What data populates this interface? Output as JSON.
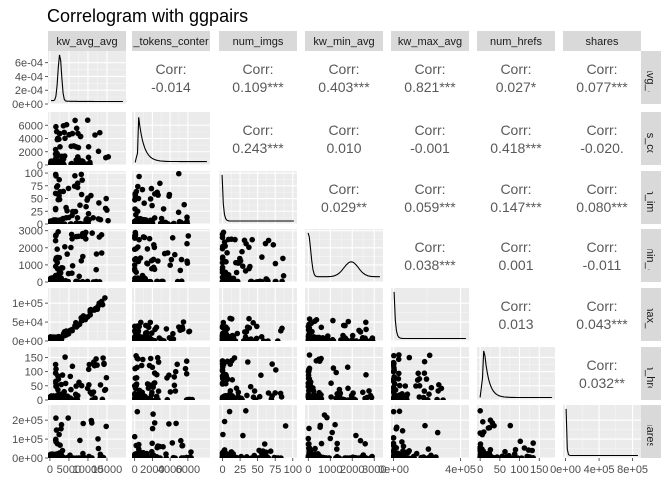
{
  "title": "Correlogram with ggpairs",
  "variables": [
    "kw_avg_avg",
    "n_tokens_content",
    "num_imgs",
    "kw_min_avg",
    "kw_max_avg",
    "num_hrefs",
    "shares"
  ],
  "strip_labels_top": [
    "kw_avg_avg",
    "_tokens_conter",
    "num_imgs",
    "kw_min_avg",
    "kw_max_avg",
    "num_hrefs",
    "shares"
  ],
  "strip_labels_right": [
    "w_avg_av",
    "kens_con",
    "num_img:",
    "w_min_av",
    "w_max_av",
    "num_href:",
    "shares"
  ],
  "corr_label": "Corr:",
  "chart_data": {
    "type": "scatter",
    "subtype": "pairs-matrix",
    "title": "Correlogram with ggpairs",
    "upper_correlations": [
      {
        "row": "kw_avg_avg",
        "col": "n_tokens_content",
        "value": "-0.014"
      },
      {
        "row": "kw_avg_avg",
        "col": "num_imgs",
        "value": "0.109***"
      },
      {
        "row": "kw_avg_avg",
        "col": "kw_min_avg",
        "value": "0.403***"
      },
      {
        "row": "kw_avg_avg",
        "col": "kw_max_avg",
        "value": "0.821***"
      },
      {
        "row": "kw_avg_avg",
        "col": "num_hrefs",
        "value": "0.027*"
      },
      {
        "row": "kw_avg_avg",
        "col": "shares",
        "value": "0.077***"
      },
      {
        "row": "n_tokens_content",
        "col": "num_imgs",
        "value": "0.243***"
      },
      {
        "row": "n_tokens_content",
        "col": "kw_min_avg",
        "value": "0.010"
      },
      {
        "row": "n_tokens_content",
        "col": "kw_max_avg",
        "value": "-0.001"
      },
      {
        "row": "n_tokens_content",
        "col": "num_hrefs",
        "value": "0.418***"
      },
      {
        "row": "n_tokens_content",
        "col": "shares",
        "value": "-0.020."
      },
      {
        "row": "num_imgs",
        "col": "kw_min_avg",
        "value": "0.029**"
      },
      {
        "row": "num_imgs",
        "col": "kw_max_avg",
        "value": "0.059***"
      },
      {
        "row": "num_imgs",
        "col": "num_hrefs",
        "value": "0.147***"
      },
      {
        "row": "num_imgs",
        "col": "shares",
        "value": "0.080***"
      },
      {
        "row": "kw_min_avg",
        "col": "kw_max_avg",
        "value": "0.038***"
      },
      {
        "row": "kw_min_avg",
        "col": "num_hrefs",
        "value": "0.001"
      },
      {
        "row": "kw_min_avg",
        "col": "shares",
        "value": "-0.011"
      },
      {
        "row": "kw_max_avg",
        "col": "num_hrefs",
        "value": "0.013"
      },
      {
        "row": "kw_max_avg",
        "col": "shares",
        "value": "0.043***"
      },
      {
        "row": "num_hrefs",
        "col": "shares",
        "value": "0.032**"
      }
    ],
    "y_axis_ticks": [
      {
        "labels": [
          "0e+00",
          "2e-04",
          "4e-04",
          "6e-04"
        ],
        "values": [
          0,
          0.0002,
          0.0004,
          0.0006
        ],
        "range": [
          0,
          0.00077
        ]
      },
      {
        "labels": [
          "0",
          "2000",
          "4000",
          "6000"
        ],
        "values": [
          0,
          2000,
          4000,
          6000
        ],
        "range": [
          0,
          8000
        ]
      },
      {
        "labels": [
          "0",
          "25",
          "50",
          "75",
          "100"
        ],
        "values": [
          0,
          25,
          50,
          75,
          100
        ],
        "range": [
          0,
          104
        ]
      },
      {
        "labels": [
          "0",
          "1000",
          "2000",
          "3000"
        ],
        "values": [
          0,
          1000,
          2000,
          3000
        ],
        "range": [
          0,
          3100
        ]
      },
      {
        "labels": [
          "0e+00",
          "5e+04",
          "1e+05"
        ],
        "values": [
          0,
          50000,
          100000
        ],
        "range": [
          0,
          140000
        ]
      },
      {
        "labels": [
          "0",
          "50",
          "100",
          "150"
        ],
        "values": [
          0,
          50,
          100,
          150
        ],
        "range": [
          0,
          187
        ]
      },
      {
        "labels": [
          "0e+00",
          "1e+05",
          "2e+05"
        ],
        "values": [
          0,
          100000,
          200000
        ],
        "range": [
          0,
          280000
        ]
      }
    ],
    "x_axis_ticks": [
      {
        "labels": [
          "0",
          "5000",
          "10000",
          "15000"
        ],
        "values": [
          0,
          5000,
          10000,
          15000
        ],
        "range": [
          -500,
          20000
        ]
      },
      {
        "labels": [
          "0",
          "2000",
          "4000",
          "6000"
        ],
        "values": [
          0,
          2000,
          4000,
          6000
        ],
        "range": [
          -300,
          8500
        ]
      },
      {
        "labels": [
          "0",
          "25",
          "50",
          "75",
          "100"
        ],
        "values": [
          0,
          25,
          50,
          75,
          100
        ],
        "range": [
          -5,
          106
        ]
      },
      {
        "labels": [
          "0",
          "1000",
          "2000",
          "3000"
        ],
        "values": [
          0,
          1000,
          2000,
          3000
        ],
        "range": [
          -150,
          3400
        ]
      },
      {
        "labels": [
          "0e+00",
          "4e+05"
        ],
        "values": [
          0,
          400000
        ],
        "range": [
          -15000,
          450000
        ]
      },
      {
        "labels": [
          "0",
          "50",
          "100",
          "150"
        ],
        "values": [
          0,
          50,
          100,
          150
        ],
        "range": [
          -8,
          190
        ]
      },
      {
        "labels": [
          "0e+00",
          "4e+05",
          "8e+05"
        ],
        "values": [
          0,
          400000,
          800000
        ],
        "range": [
          -30000,
          900000
        ]
      }
    ]
  }
}
